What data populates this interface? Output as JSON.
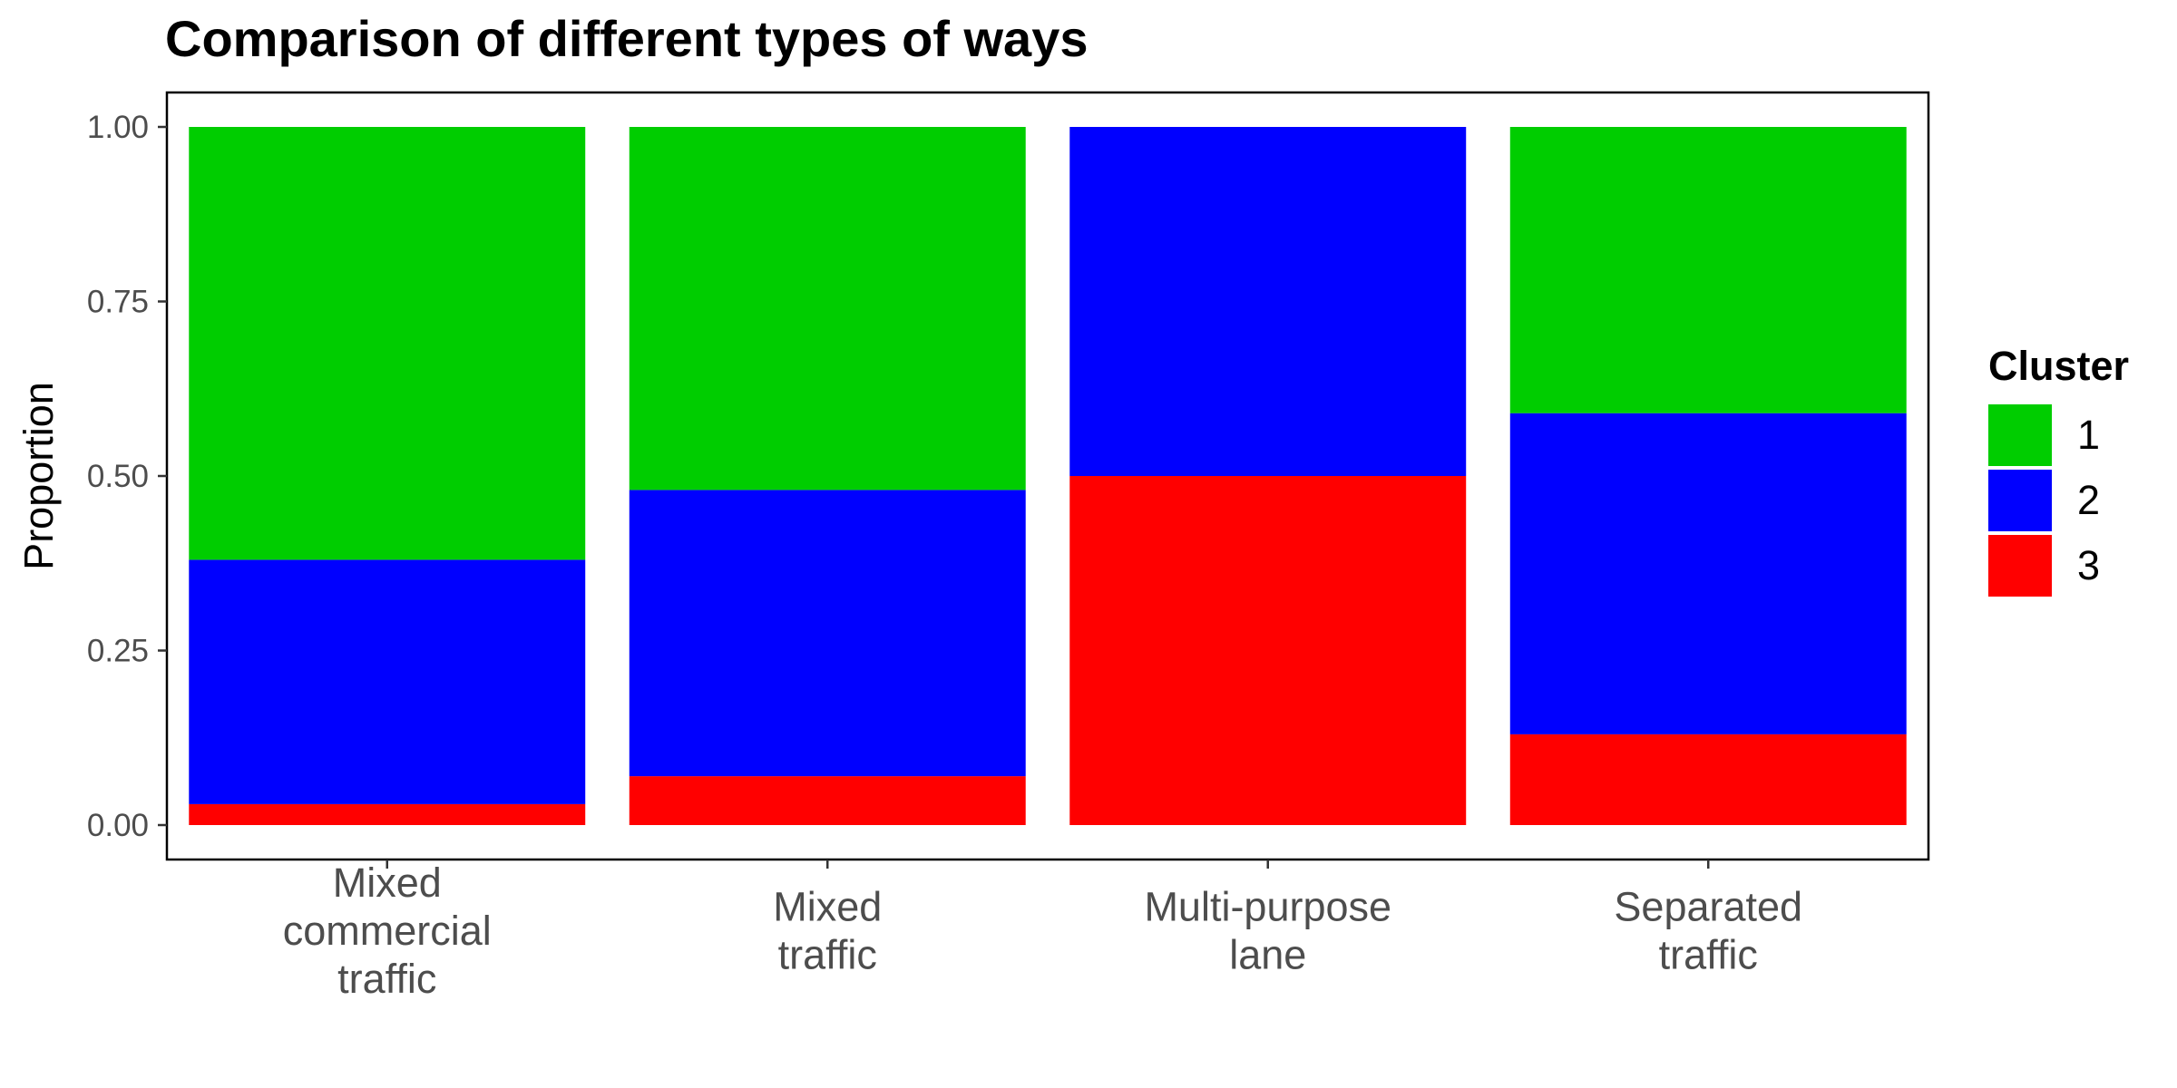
{
  "chart_data": {
    "type": "bar",
    "stacked": true,
    "title": "Comparison of different types of ways",
    "xlabel": "",
    "ylabel": "Proportion",
    "ylim": [
      0,
      1
    ],
    "yticks": [
      "0.00",
      "0.25",
      "0.50",
      "0.75",
      "1.00"
    ],
    "ytick_values": [
      0,
      0.25,
      0.5,
      0.75,
      1
    ],
    "categories": [
      [
        "Mixed",
        "commercial",
        "traffic"
      ],
      [
        "Mixed",
        "traffic"
      ],
      [
        "Multi-purpose",
        "lane"
      ],
      [
        "Separated",
        "traffic"
      ]
    ],
    "series": [
      {
        "name": "3",
        "color": "#ff0000",
        "values": [
          0.03,
          0.07,
          0.5,
          0.13
        ]
      },
      {
        "name": "2",
        "color": "#0000ff",
        "values": [
          0.35,
          0.41,
          0.5,
          0.46
        ]
      },
      {
        "name": "1",
        "color": "#00cd00",
        "values": [
          0.62,
          0.52,
          0.0,
          0.41
        ]
      }
    ],
    "grid": false,
    "legend": {
      "title": "Cluster",
      "position": "right",
      "items": [
        {
          "label": "1",
          "color": "#00cd00"
        },
        {
          "label": "2",
          "color": "#0000ff"
        },
        {
          "label": "3",
          "color": "#ff0000"
        }
      ]
    }
  }
}
